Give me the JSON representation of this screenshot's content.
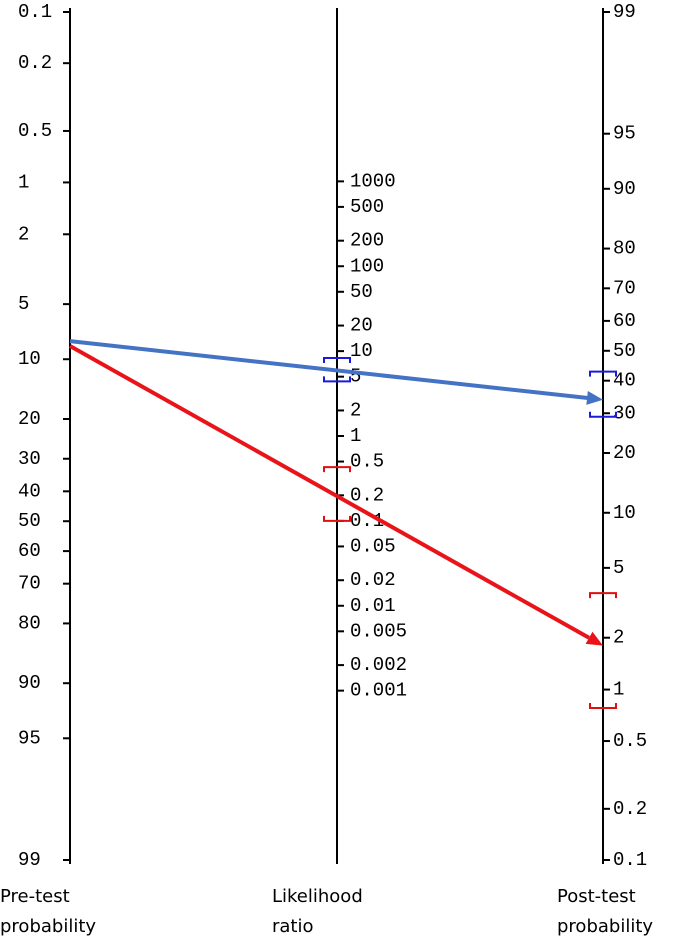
{
  "chart_data": {
    "type": "nomogram",
    "pretest_axis": {
      "label": [
        "Pre-test",
        "probability"
      ],
      "ylim": [
        0.1,
        99
      ],
      "ticks": [
        0.1,
        0.2,
        0.5,
        1,
        2,
        5,
        10,
        20,
        30,
        40,
        50,
        60,
        70,
        80,
        90,
        95,
        99
      ]
    },
    "lr_axis": {
      "label": [
        "Likelihood",
        "ratio"
      ],
      "ticks": [
        1000,
        500,
        200,
        100,
        50,
        20,
        10,
        5,
        2,
        1,
        0.5,
        0.2,
        0.1,
        0.05,
        0.02,
        0.01,
        0.005,
        0.002,
        0.001
      ]
    },
    "posttest_axis": {
      "label": [
        "Post-test",
        "probability"
      ],
      "ylim": [
        99,
        0.1
      ],
      "ticks": [
        99,
        95,
        90,
        80,
        70,
        60,
        50,
        40,
        30,
        20,
        10,
        5,
        2,
        1,
        0.5,
        0.2,
        0.1
      ]
    },
    "series": [
      {
        "color": "#4472c4",
        "ci_color": "#1a1adc",
        "pretest": 8,
        "lr": 6,
        "posttest": 34,
        "lr_ci": [
          4.4,
          8.3
        ],
        "posttest_ci": [
          29,
          43
        ]
      },
      {
        "color": "#e8141a",
        "ci_color": "#e01010",
        "pretest": 8.5,
        "lr": 0.2,
        "posttest": 1.8,
        "lr_ci": [
          0.1,
          0.43
        ],
        "posttest_ci": [
          0.78,
          3.6
        ]
      }
    ]
  }
}
